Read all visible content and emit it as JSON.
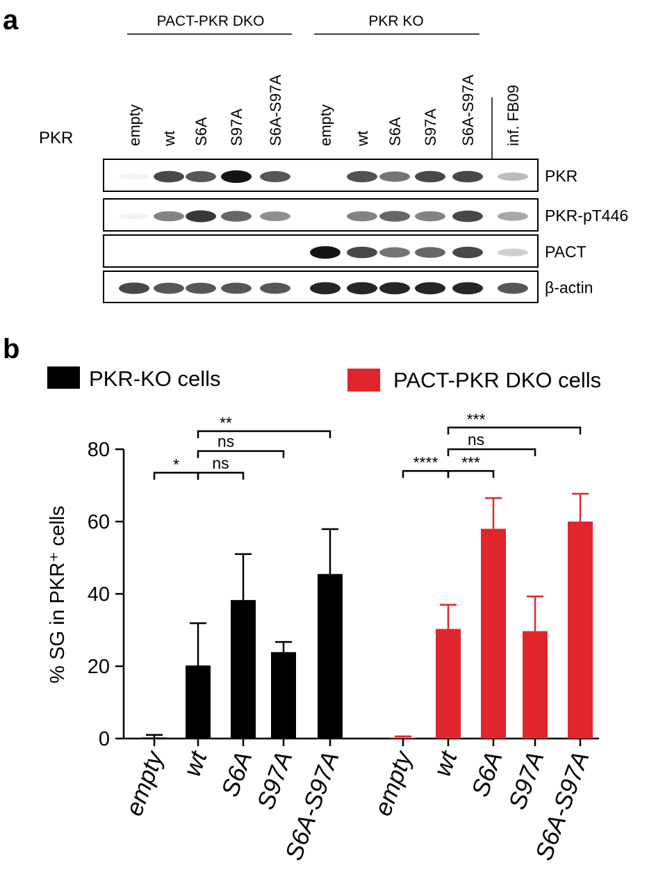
{
  "panel_a": {
    "letter": "a",
    "row_label": "PKR",
    "groups": [
      {
        "title": "PACT-PKR DKO",
        "lanes": [
          "empty",
          "wt",
          "S6A",
          "S97A",
          "S6A-S97A"
        ]
      },
      {
        "title": "PKR KO",
        "lanes": [
          "empty",
          "wt",
          "S6A",
          "S97A",
          "S6A-S97A"
        ]
      }
    ],
    "extra_lane": "inf. FB09",
    "blots": [
      {
        "label": "PKR",
        "intensity": [
          0.05,
          0.85,
          0.8,
          1.0,
          0.8,
          0.0,
          0.82,
          0.7,
          0.85,
          0.85,
          0.4
        ]
      },
      {
        "label": "PKR-pT446",
        "intensity": [
          0.05,
          0.65,
          0.9,
          0.75,
          0.6,
          0.0,
          0.65,
          0.75,
          0.65,
          0.85,
          0.5
        ]
      },
      {
        "label": "PACT",
        "intensity": [
          0.0,
          0.0,
          0.0,
          0.0,
          0.0,
          1.0,
          0.85,
          0.7,
          0.75,
          0.85,
          0.3
        ]
      },
      {
        "label": "β-actin",
        "intensity": [
          0.85,
          0.8,
          0.8,
          0.8,
          0.8,
          0.95,
          0.95,
          0.95,
          0.95,
          0.95,
          0.8
        ]
      }
    ]
  },
  "panel_b": {
    "letter": "b",
    "legend": [
      {
        "label": "PKR-KO cells",
        "color": "#000000"
      },
      {
        "label": "PACT-PKR DKO cells",
        "color": "#e0262d"
      }
    ]
  },
  "chart_data": {
    "type": "bar",
    "ylabel": "% SG in PKR⁺ cells",
    "ylim": [
      0,
      80
    ],
    "yticks": [
      0,
      20,
      40,
      60,
      80
    ],
    "categories": [
      "empty",
      "wt",
      "S6A",
      "S97A",
      "S6A-S97A"
    ],
    "series": [
      {
        "name": "PKR-KO cells",
        "color": "#000000",
        "values": [
          0.3,
          20.2,
          38.3,
          23.9,
          45.5
        ],
        "errors": [
          0.7,
          11.7,
          12.7,
          2.8,
          12.4
        ]
      },
      {
        "name": "PACT-PKR DKO cells",
        "color": "#e0262d",
        "values": [
          0.2,
          30.3,
          58.0,
          29.7,
          60.0
        ],
        "errors": [
          0.4,
          6.7,
          8.5,
          9.6,
          7.7
        ]
      }
    ],
    "significance": [
      {
        "series": 0,
        "from": 0,
        "to": 1,
        "label": "*",
        "level": 73.5
      },
      {
        "series": 0,
        "from": 1,
        "to": 2,
        "label": "ns",
        "level": 73.5
      },
      {
        "series": 0,
        "from": 1,
        "to": 3,
        "label": "ns",
        "level": 79.5
      },
      {
        "series": 0,
        "from": 1,
        "to": 4,
        "label": "**",
        "level": 85.0
      },
      {
        "series": 1,
        "from": 0,
        "to": 1,
        "label": "****",
        "level": 74.0
      },
      {
        "series": 1,
        "from": 1,
        "to": 2,
        "label": "***",
        "level": 74.0
      },
      {
        "series": 1,
        "from": 1,
        "to": 3,
        "label": "ns",
        "level": 80.0
      },
      {
        "series": 1,
        "from": 1,
        "to": 4,
        "label": "***",
        "level": 86.0
      }
    ]
  }
}
